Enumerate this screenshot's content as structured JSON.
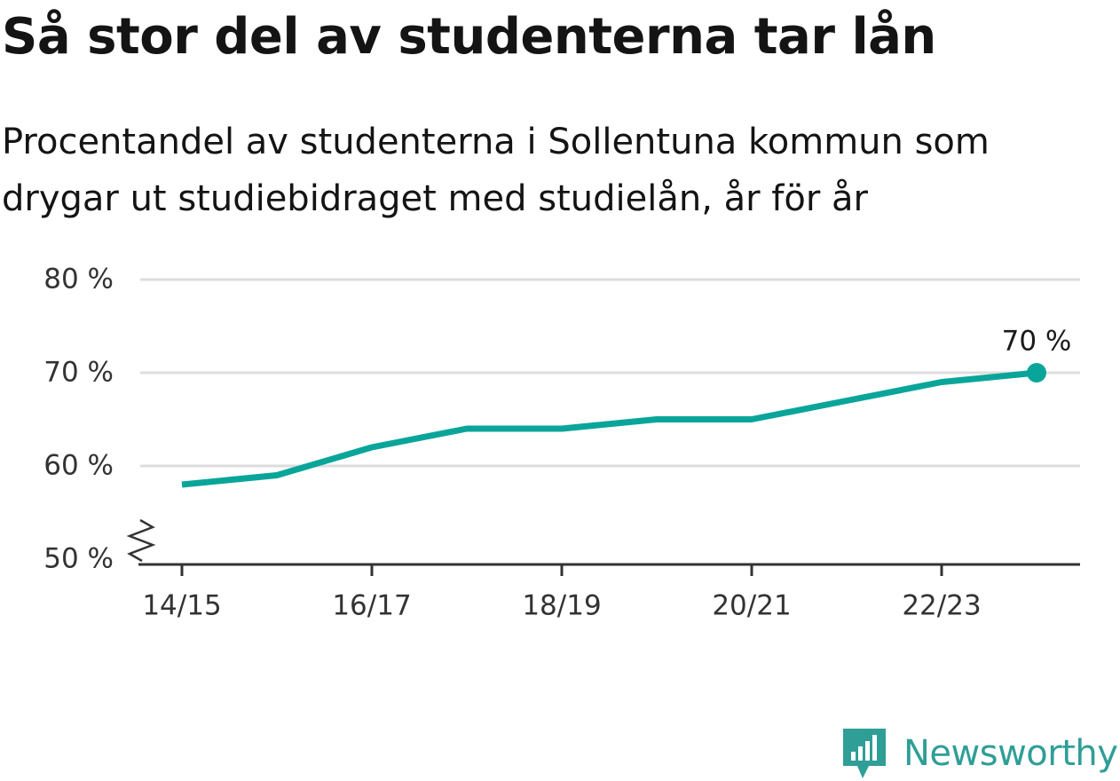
{
  "header": {
    "title": "Så stor del av studenterna tar lån",
    "subtitle": "Procentandel av studenterna i Sollentuna kommun som drygar ut studiebidraget med studielån, år för år"
  },
  "chart_data": {
    "type": "line",
    "x": [
      "14/15",
      "15/16",
      "16/17",
      "17/18",
      "18/19",
      "19/20",
      "20/21",
      "21/22",
      "22/23",
      "23/24"
    ],
    "x_tick_labels": [
      "14/15",
      "16/17",
      "18/19",
      "20/21",
      "22/23"
    ],
    "series": [
      {
        "values": [
          58,
          59,
          62,
          64,
          64,
          65,
          65,
          67,
          69,
          70
        ]
      }
    ],
    "y_ticks": [
      50,
      60,
      70,
      80
    ],
    "y_tick_labels": [
      "50 %",
      "60 %",
      "70 %",
      "80 %"
    ],
    "ylim": [
      50,
      80
    ],
    "y_axis_break": true,
    "grid": true,
    "end_label": "70 %",
    "line_color": "#0aa59a",
    "grid_color": "#dddddd"
  },
  "brand": {
    "name": "Newsworthy",
    "icon": "newsworthy-logo-icon",
    "color": "#2f9e97"
  }
}
